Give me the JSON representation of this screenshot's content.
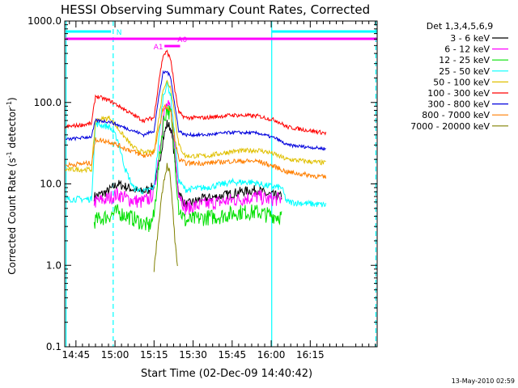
{
  "chart_data": {
    "type": "line",
    "title": "HESSI Observing Summary Count Rates, Corrected",
    "xlabel": "Start Time (02-Dec-09 14:40:42)",
    "ylabel_main": "Corrected Count Rate (s",
    "ylabel_sup1": "-1",
    "ylabel_mid": " detector",
    "ylabel_sup2": "-1",
    "ylabel_end": ")",
    "y_scale": "log",
    "ylim": [
      0.1,
      1000
    ],
    "xlim_min": [
      40.7,
      160.7
    ],
    "x_ticks": [
      {
        "min": 45,
        "label": "14:45"
      },
      {
        "min": 60,
        "label": "15:00"
      },
      {
        "min": 75,
        "label": "15:15"
      },
      {
        "min": 90,
        "label": "15:30"
      },
      {
        "min": 105,
        "label": "15:45"
      },
      {
        "min": 120,
        "label": "16:00"
      },
      {
        "min": 135,
        "label": "16:15"
      }
    ],
    "y_ticks": [
      {
        "v": 0.1,
        "label": "0.1"
      },
      {
        "v": 1,
        "label": "1.0"
      },
      {
        "v": 10,
        "label": "10.0"
      },
      {
        "v": 100,
        "label": "100.0"
      },
      {
        "v": 1000,
        "label": "1000.0"
      }
    ],
    "legend_title": "Det 1,3,4,5,6,9",
    "legend_position": "right",
    "series": [
      {
        "name": "3 - 6 keV",
        "color": "#000000",
        "points": [
          [
            52,
            7
          ],
          [
            57,
            8
          ],
          [
            61,
            10
          ],
          [
            65,
            9
          ],
          [
            70,
            8
          ],
          [
            73,
            8.5
          ],
          [
            75,
            9.5
          ],
          [
            77,
            18
          ],
          [
            78.5,
            36
          ],
          [
            80,
            55
          ],
          [
            81.5,
            48
          ],
          [
            83,
            20
          ],
          [
            84.5,
            8
          ],
          [
            87,
            5.5
          ],
          [
            93,
            6.5
          ],
          [
            100,
            7
          ],
          [
            108,
            8
          ],
          [
            115,
            8.5
          ],
          [
            118,
            7.5
          ],
          [
            124,
            7
          ]
        ]
      },
      {
        "name": "6 - 12 keV",
        "color": "#ff00ff",
        "points": [
          [
            52,
            6
          ],
          [
            57,
            6.5
          ],
          [
            61,
            7.5
          ],
          [
            65,
            6.5
          ],
          [
            70,
            6
          ],
          [
            73,
            6.5
          ],
          [
            75,
            8
          ],
          [
            77,
            25
          ],
          [
            78.5,
            65
          ],
          [
            80,
            95
          ],
          [
            81.5,
            75
          ],
          [
            83,
            25
          ],
          [
            84.5,
            8
          ],
          [
            87,
            5
          ],
          [
            93,
            5.5
          ],
          [
            100,
            6
          ],
          [
            108,
            6.5
          ],
          [
            115,
            7
          ],
          [
            118,
            6.5
          ],
          [
            124,
            6.5
          ]
        ]
      },
      {
        "name": "12 - 25 keV",
        "color": "#00e000",
        "points": [
          [
            52,
            3.5
          ],
          [
            57,
            4
          ],
          [
            61,
            4.5
          ],
          [
            65,
            4
          ],
          [
            69,
            3.5
          ],
          [
            73,
            3
          ],
          [
            75,
            4
          ],
          [
            77,
            20
          ],
          [
            78.5,
            55
          ],
          [
            80,
            85
          ],
          [
            81.5,
            70
          ],
          [
            83,
            20
          ],
          [
            84.5,
            5
          ],
          [
            87,
            3.5
          ],
          [
            93,
            3.8
          ],
          [
            100,
            4
          ],
          [
            108,
            4.5
          ],
          [
            115,
            4.5
          ],
          [
            118,
            4.2
          ],
          [
            124,
            4
          ]
        ]
      },
      {
        "name": "25 - 50 keV",
        "color": "#00ffff",
        "points": [
          [
            41,
            6.5
          ],
          [
            51,
            6.5
          ],
          [
            52.5,
            55
          ],
          [
            58,
            50
          ],
          [
            61,
            35
          ],
          [
            64,
            15
          ],
          [
            67,
            9
          ],
          [
            71,
            8
          ],
          [
            75,
            9
          ],
          [
            77,
            40
          ],
          [
            78.5,
            120
          ],
          [
            80,
            170
          ],
          [
            81.5,
            120
          ],
          [
            83,
            35
          ],
          [
            84.5,
            11
          ],
          [
            87,
            8.5
          ],
          [
            95,
            9
          ],
          [
            105,
            10.5
          ],
          [
            113,
            10.5
          ],
          [
            118,
            9.5
          ],
          [
            124,
            9
          ],
          [
            126,
            6
          ],
          [
            141,
            5.5
          ]
        ]
      },
      {
        "name": "50 - 100 keV",
        "color": "#e0c000",
        "points": [
          [
            41,
            15
          ],
          [
            51,
            15
          ],
          [
            52.5,
            60
          ],
          [
            58,
            65
          ],
          [
            63,
            40
          ],
          [
            67,
            28
          ],
          [
            71,
            24
          ],
          [
            75,
            25
          ],
          [
            77,
            70
          ],
          [
            78.5,
            150
          ],
          [
            80,
            180
          ],
          [
            81.5,
            150
          ],
          [
            83,
            70
          ],
          [
            84.5,
            30
          ],
          [
            87,
            22
          ],
          [
            95,
            22
          ],
          [
            105,
            25
          ],
          [
            115,
            26
          ],
          [
            120,
            24
          ],
          [
            126,
            20
          ],
          [
            141,
            18
          ]
        ]
      },
      {
        "name": "100 - 300 keV",
        "color": "#ff0000",
        "points": [
          [
            41,
            50
          ],
          [
            51,
            55
          ],
          [
            52.5,
            120
          ],
          [
            58,
            105
          ],
          [
            63,
            85
          ],
          [
            67,
            70
          ],
          [
            71,
            60
          ],
          [
            75,
            65
          ],
          [
            77,
            200
          ],
          [
            78.5,
            380
          ],
          [
            80,
            420
          ],
          [
            81.5,
            330
          ],
          [
            83,
            140
          ],
          [
            84.5,
            75
          ],
          [
            87,
            65
          ],
          [
            95,
            65
          ],
          [
            105,
            70
          ],
          [
            115,
            68
          ],
          [
            122,
            60
          ],
          [
            126,
            50
          ],
          [
            141,
            42
          ]
        ]
      },
      {
        "name": "300 - 800 keV",
        "color": "#0000dd",
        "points": [
          [
            41,
            35
          ],
          [
            51,
            38
          ],
          [
            52.5,
            60
          ],
          [
            58,
            58
          ],
          [
            63,
            50
          ],
          [
            67,
            45
          ],
          [
            71,
            40
          ],
          [
            75,
            45
          ],
          [
            77,
            130
          ],
          [
            78.5,
            230
          ],
          [
            80,
            240
          ],
          [
            81.5,
            200
          ],
          [
            83,
            90
          ],
          [
            84.5,
            45
          ],
          [
            87,
            40
          ],
          [
            95,
            40
          ],
          [
            105,
            43
          ],
          [
            115,
            42
          ],
          [
            122,
            36
          ],
          [
            126,
            30
          ],
          [
            141,
            27
          ]
        ]
      },
      {
        "name": "800 - 7000 keV",
        "color": "#ff7f00",
        "points": [
          [
            41,
            17
          ],
          [
            51,
            18
          ],
          [
            52.5,
            35
          ],
          [
            58,
            33
          ],
          [
            63,
            28
          ],
          [
            67,
            25
          ],
          [
            71,
            22
          ],
          [
            75,
            24
          ],
          [
            77,
            50
          ],
          [
            78.5,
            85
          ],
          [
            80,
            90
          ],
          [
            81.5,
            75
          ],
          [
            83,
            35
          ],
          [
            84.5,
            20
          ],
          [
            87,
            18
          ],
          [
            95,
            18
          ],
          [
            105,
            19
          ],
          [
            115,
            19
          ],
          [
            122,
            16
          ],
          [
            126,
            14
          ],
          [
            141,
            12
          ]
        ]
      },
      {
        "name": "7000 - 20000 keV",
        "color": "#808000",
        "points": [
          [
            75,
            0.9
          ],
          [
            76,
            1.8
          ],
          [
            77,
            4
          ],
          [
            78.5,
            10
          ],
          [
            80,
            17
          ],
          [
            81,
            14
          ],
          [
            82,
            6
          ],
          [
            83,
            2
          ],
          [
            84,
            0.9
          ]
        ]
      }
    ],
    "annotations": [
      {
        "label": "N",
        "color": "#00ffff"
      },
      {
        "label": "A0",
        "color": "#ff00ff"
      },
      {
        "label": "A1",
        "color": "#ff00ff"
      }
    ],
    "footer_date": "13-May-2010 02:59"
  }
}
